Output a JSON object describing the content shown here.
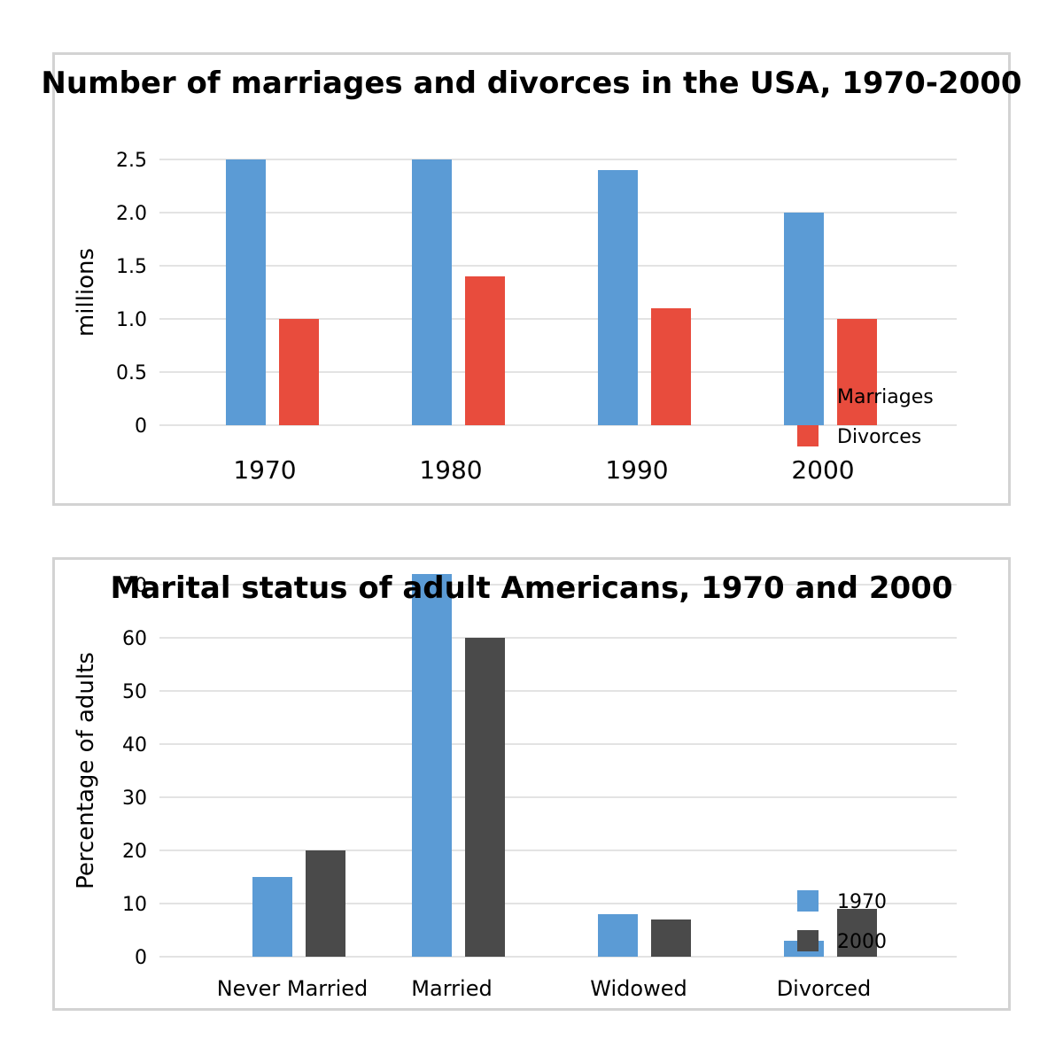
{
  "chart_data": [
    {
      "type": "bar",
      "title": "Number of marriages and divorces in the USA, 1970-2000",
      "xlabel": "",
      "ylabel": "millions",
      "categories": [
        "1970",
        "1980",
        "1990",
        "2000"
      ],
      "series": [
        {
          "name": "Marriages",
          "color": "#5b9bd5",
          "values": [
            2.5,
            2.5,
            2.4,
            2.0
          ]
        },
        {
          "name": "Divorces",
          "color": "#e84c3d",
          "values": [
            1.0,
            1.4,
            1.1,
            1.0
          ]
        }
      ],
      "ylim": [
        0,
        2.5
      ],
      "yticks": [
        "0",
        "0.5",
        "1.0",
        "1.5",
        "2.0",
        "2.5"
      ],
      "grid": true,
      "legend_position": "bottom-right"
    },
    {
      "type": "bar",
      "title": "Marital status of adult Americans, 1970 and 2000",
      "xlabel": "",
      "ylabel": "Percentage of adults",
      "categories": [
        "Never Married",
        "Married",
        "Widowed",
        "Divorced"
      ],
      "series": [
        {
          "name": "1970",
          "color": "#5b9bd5",
          "values": [
            15,
            72,
            8,
            3
          ]
        },
        {
          "name": "2000",
          "color": "#4a4a4a",
          "values": [
            20,
            60,
            7,
            9
          ]
        }
      ],
      "ylim": [
        0,
        70
      ],
      "yticks": [
        "0",
        "10",
        "20",
        "30",
        "40",
        "50",
        "60",
        "70"
      ],
      "grid": true,
      "legend_position": "bottom-right"
    }
  ]
}
